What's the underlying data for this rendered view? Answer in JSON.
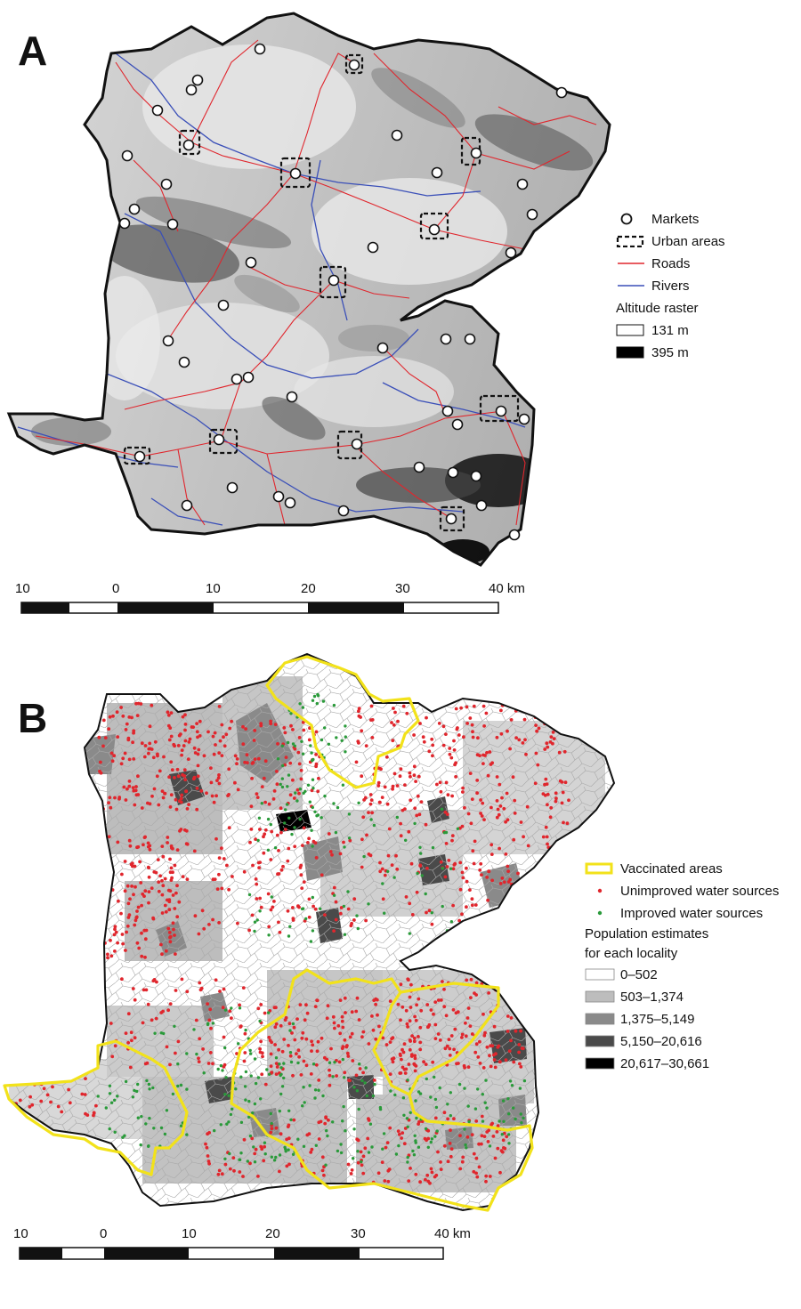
{
  "panel_a": {
    "letter": "A",
    "legend": {
      "markets": "Markets",
      "urban": "Urban areas",
      "roads": "Roads",
      "rivers": "Rivers",
      "altitude_title": "Altitude raster",
      "alt_low": "131 m",
      "alt_high": "395 m"
    },
    "scale_labels": [
      "10",
      "0",
      "10",
      "20",
      "30",
      "40 km"
    ]
  },
  "panel_b": {
    "letter": "B",
    "legend": {
      "vaccinated": "Vaccinated areas",
      "unimproved": "Unimproved water sources",
      "improved": "Improved water sources",
      "pop_title_line1": "Population estimates",
      "pop_title_line2": "for each locality",
      "classes": [
        "0–502",
        "503–1,374",
        "1,375–5,149",
        "5,150–20,616",
        "20,617–30,661"
      ]
    },
    "scale_labels": [
      "10",
      "0",
      "10",
      "20",
      "30",
      "40 km"
    ]
  },
  "colors": {
    "roads": "#e0262d",
    "rivers": "#3a4fb8",
    "vaccinated": "#f2e21a",
    "unimproved": "#e0262d",
    "improved": "#2a9a3a",
    "pop_classes": [
      "#ffffff",
      "#bdbdbd",
      "#8a8a8a",
      "#4a4a4a",
      "#000000"
    ]
  }
}
